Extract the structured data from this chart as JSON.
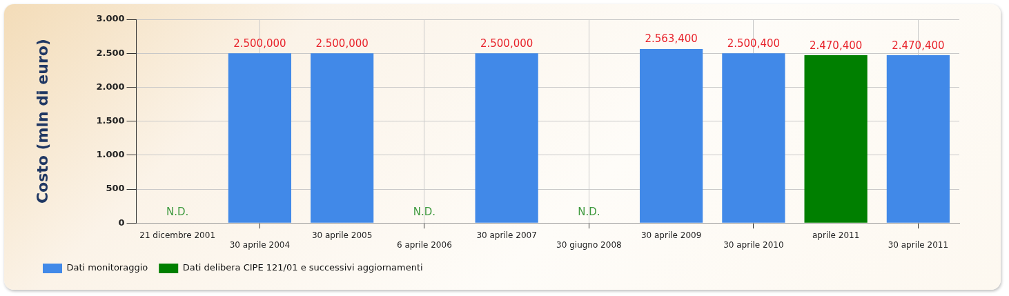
{
  "chart_data": {
    "type": "bar",
    "ylabel": "Costo (mln di euro)",
    "categories": [
      "21 dicembre 2001",
      "30 aprile 2004",
      "30 aprile 2005",
      "6 aprile 2006",
      "30 aprile 2007",
      "30 giugno 2008",
      "30 aprile 2009",
      "30 aprile 2010",
      "aprile 2011",
      "30 aprile 2011"
    ],
    "series": [
      {
        "name": "Dati monitoraggio",
        "color": "#4189e8",
        "values": [
          null,
          2500,
          2500,
          null,
          2500,
          null,
          2563.4,
          2500.4,
          null,
          2470.4
        ],
        "value_labels": [
          "N.D.",
          "2.500,000",
          "2.500,000",
          "N.D.",
          "2.500,000",
          "N.D.",
          "2.563,400",
          "2.500,400",
          null,
          "2.470,400"
        ]
      },
      {
        "name": "Dati delibera CIPE 121/01 e successivi aggiornamenti",
        "color": "#007f00",
        "values": [
          null,
          null,
          null,
          null,
          null,
          null,
          null,
          null,
          2470.4,
          null
        ],
        "value_labels": [
          null,
          null,
          null,
          null,
          null,
          null,
          null,
          null,
          "2.470,400",
          null
        ]
      }
    ],
    "ylim": [
      0,
      3000
    ],
    "yticks": [
      {
        "value": 0,
        "label": "0"
      },
      {
        "value": 500,
        "label": "500"
      },
      {
        "value": 1000,
        "label": "1.000"
      },
      {
        "value": 1500,
        "label": "1.500"
      },
      {
        "value": 2000,
        "label": "2.000"
      },
      {
        "value": 2500,
        "label": "2.500"
      },
      {
        "value": 3000,
        "label": "3.000"
      }
    ],
    "grid": true,
    "legend": "bottom left"
  }
}
